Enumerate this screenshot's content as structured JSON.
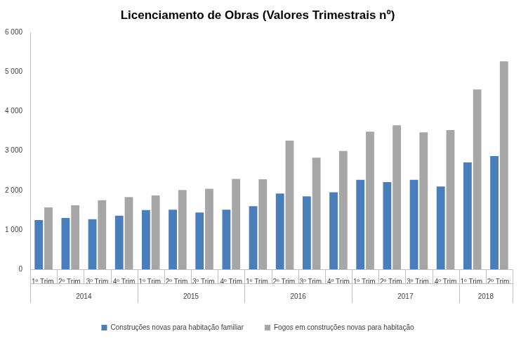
{
  "chart_data": {
    "type": "bar",
    "title": "Licenciamento de Obras (Valores Trimestrais nº)",
    "categories": [
      "1º Trim.",
      "2º Trim.",
      "3º Trim",
      "4º Trim",
      "1º Trim.",
      "2º Trim.",
      "3º Trim.",
      "4º Trim",
      "1º Trim.",
      "2º Trim.",
      "3º Trim.",
      "4º Trim",
      "1º Trim.",
      "2º Trim.",
      "3º Trim.",
      "4º Trim",
      "1º Trim.",
      "2º Trim."
    ],
    "category_groups": [
      {
        "label": "2014",
        "size": 4
      },
      {
        "label": "2015",
        "size": 4
      },
      {
        "label": "2016",
        "size": 4
      },
      {
        "label": "2017",
        "size": 4
      },
      {
        "label": "2018",
        "size": 2
      }
    ],
    "series": [
      {
        "name": "Construções novas para habitação familiar",
        "color": "#4a7ebb",
        "values": [
          1250,
          1300,
          1270,
          1360,
          1500,
          1510,
          1440,
          1510,
          1600,
          1920,
          1850,
          1950,
          2270,
          2210,
          2270,
          2100,
          2710,
          2870
        ]
      },
      {
        "name": "Fogos em construções novas para habitação",
        "color": "#a6a6a6",
        "values": [
          1570,
          1620,
          1750,
          1830,
          1870,
          2010,
          2040,
          2290,
          2280,
          3260,
          2830,
          3000,
          3490,
          3650,
          3470,
          3530,
          4560,
          5270
        ]
      }
    ],
    "ylim": [
      0,
      6000
    ],
    "yticks": [
      0,
      {
        "value": 1000,
        "label": "1 000"
      },
      {
        "value": 2000,
        "label": "2 000"
      },
      {
        "value": 3000,
        "label": "3 000"
      },
      {
        "value": 4000,
        "label": "4 000"
      },
      {
        "value": 5000,
        "label": "5 000"
      },
      {
        "value": 6000,
        "label": "6 000"
      }
    ],
    "grid": false,
    "legend": "bottom"
  }
}
